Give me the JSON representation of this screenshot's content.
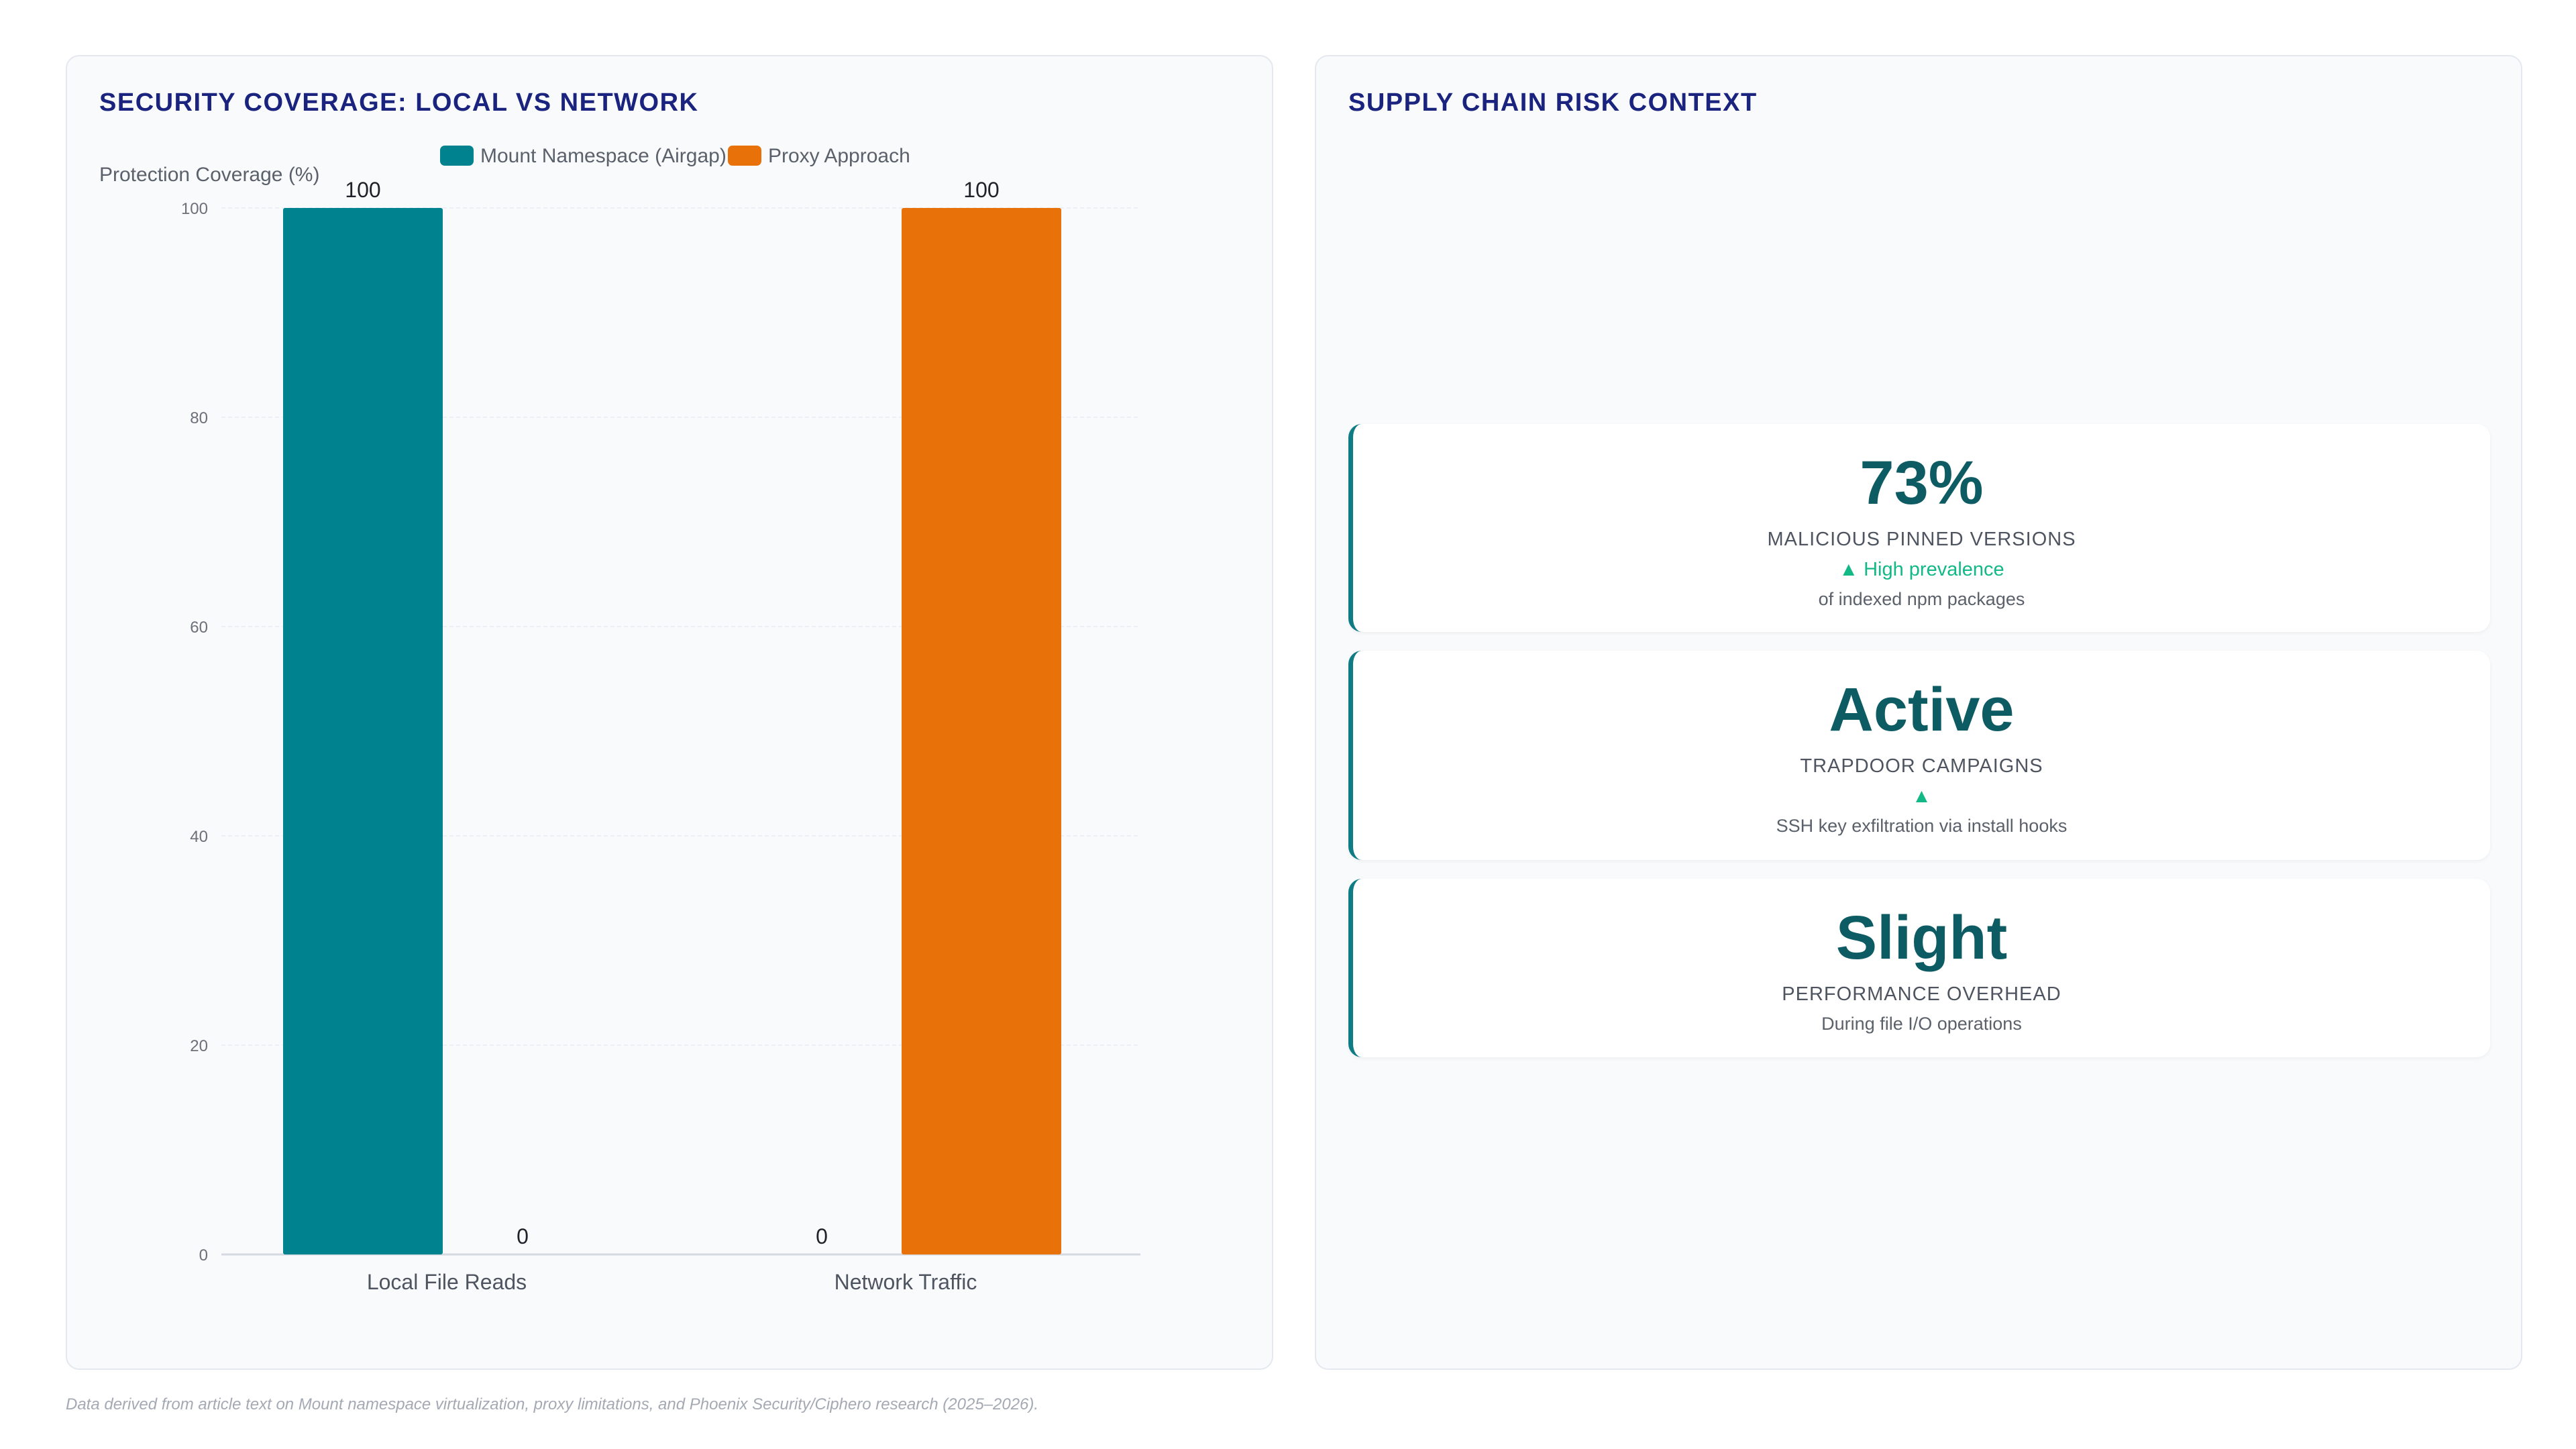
{
  "left_panel": {
    "title": "SECURITY COVERAGE: LOCAL VS NETWORK"
  },
  "right_panel": {
    "title": "SUPPLY CHAIN RISK CONTEXT",
    "cards": [
      {
        "value": "73%",
        "label": "MALICIOUS PINNED VERSIONS",
        "trend": "▲ High prevalence",
        "note": "of indexed npm packages"
      },
      {
        "value": "Active",
        "label": "TRAPDOOR CAMPAIGNS",
        "trend": "▲",
        "note": "SSH key exfiltration via install hooks"
      },
      {
        "value": "Slight",
        "label": "PERFORMANCE OVERHEAD",
        "trend": "",
        "note": "During file I/O operations"
      }
    ]
  },
  "footnote": "Data derived from article text on Mount namespace virtualization, proxy limitations, and Phoenix Security/Ciphero research (2025–2026).",
  "colors": {
    "series_1": "#00838f",
    "series_2": "#e8710a",
    "title": "#1a237e",
    "stat_value": "#0d5c63",
    "trend": "#12b886"
  },
  "chart_data": {
    "type": "bar",
    "title": "SECURITY COVERAGE: LOCAL VS NETWORK",
    "categories": [
      "Local File Reads",
      "Network Traffic"
    ],
    "series": [
      {
        "name": "Mount Namespace (Airgap)",
        "values": [
          100,
          0
        ],
        "color": "#00838f"
      },
      {
        "name": "Proxy Approach",
        "values": [
          0,
          100
        ],
        "color": "#e8710a"
      }
    ],
    "ylabel": "Protection Coverage (%)",
    "xlabel": "",
    "ylim": [
      0,
      100
    ],
    "yticks": [
      0,
      20,
      40,
      60,
      80,
      100
    ],
    "grid": true,
    "legend": "top-center"
  }
}
